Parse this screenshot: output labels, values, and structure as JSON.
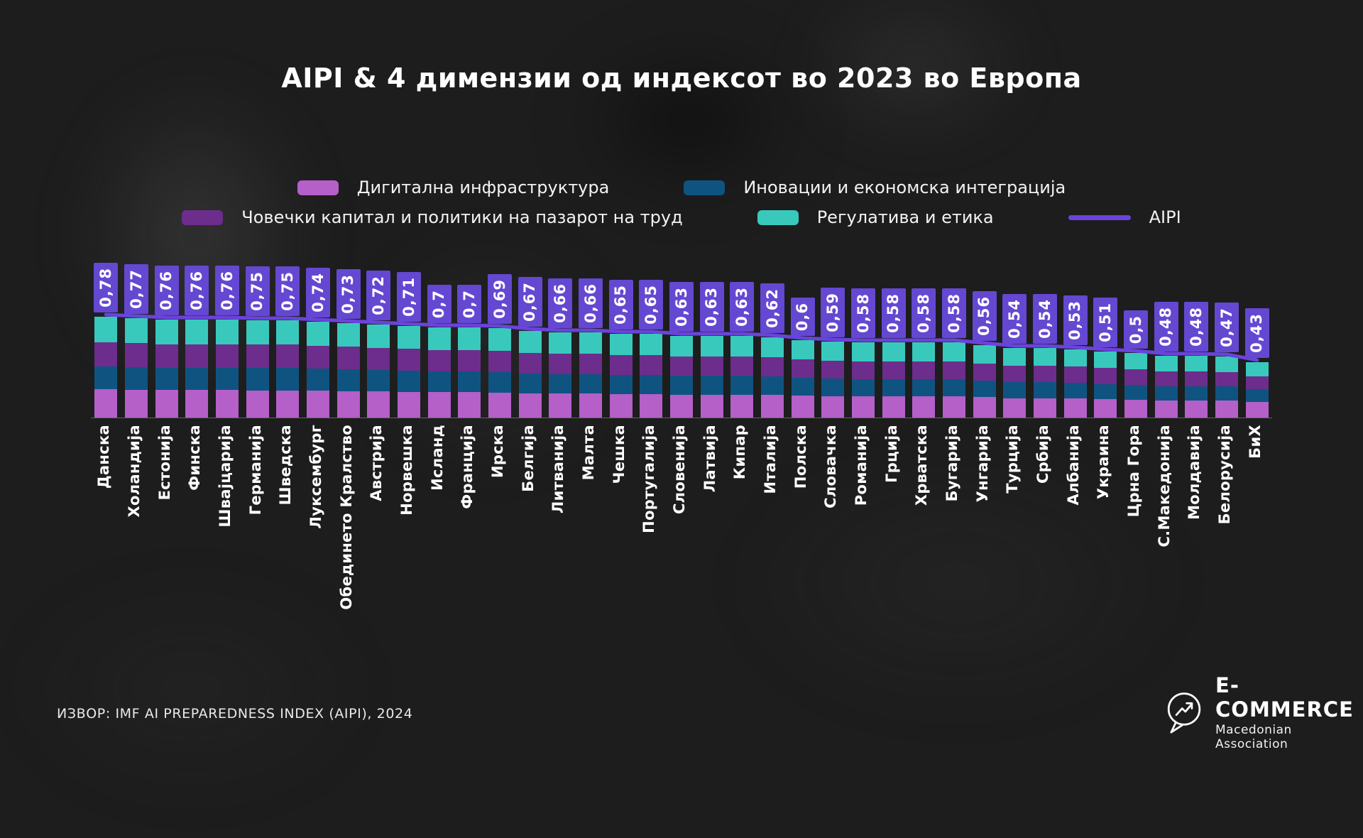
{
  "title": "AIPI & 4 димензии од индексот во 2023 во Европа",
  "legend": {
    "items": [
      {
        "label": "Дигитална инфраструктура",
        "color": "#b55fc9",
        "type": "swatch"
      },
      {
        "label": "Иновации и економска интеграција",
        "color": "#0f5480",
        "type": "swatch"
      },
      {
        "label": "Човечки капитал и политики на пазарот на труд",
        "color": "#6d2d8c",
        "type": "swatch"
      },
      {
        "label": "Регулатива и етика",
        "color": "#38c9bc",
        "type": "swatch"
      },
      {
        "label": "AIPI",
        "color": "#6a43dc",
        "type": "line"
      }
    ]
  },
  "chart_data": {
    "type": "bar",
    "subtype": "stacked-columns-with-line-overlay",
    "title": "AIPI & 4 димензии од индексот во 2023 во Европа",
    "xlabel": "",
    "ylabel": "",
    "ylim": [
      0,
      0.8
    ],
    "grid": false,
    "legend_position": "top",
    "categories": [
      "Данска",
      "Холандија",
      "Естонија",
      "Финска",
      "Швајцарија",
      "Германија",
      "Шведска",
      "Луксембург",
      "Обединето Кралство",
      "Австрија",
      "Норвешка",
      "Исланд",
      "Франција",
      "Ирска",
      "Белгија",
      "Литванија",
      "Малта",
      "Чешка",
      "Португалија",
      "Словенија",
      "Латвија",
      "Кипар",
      "Италија",
      "Полска",
      "Словачка",
      "Романија",
      "Грција",
      "Хрватска",
      "Бугарија",
      "Унгарија",
      "Турција",
      "Србија",
      "Албанија",
      "Украина",
      "Црна Гора",
      "С.Македонија",
      "Молдавија",
      "Белорусија",
      "БиХ"
    ],
    "aipi": {
      "name": "AIPI",
      "values": [
        0.78,
        0.77,
        0.76,
        0.76,
        0.76,
        0.75,
        0.75,
        0.74,
        0.73,
        0.72,
        0.71,
        0.7,
        0.7,
        0.69,
        0.67,
        0.66,
        0.66,
        0.65,
        0.65,
        0.63,
        0.63,
        0.63,
        0.62,
        0.6,
        0.59,
        0.58,
        0.58,
        0.58,
        0.58,
        0.56,
        0.54,
        0.54,
        0.53,
        0.51,
        0.5,
        0.48,
        0.48,
        0.47,
        0.43
      ]
    },
    "value_labels": [
      "0,78",
      "0,77",
      "0,76",
      "0,76",
      "0,76",
      "0,75",
      "0,75",
      "0,74",
      "0,73",
      "0,72",
      "0,71",
      "0,7",
      "0,7",
      "0,69",
      "0,67",
      "0,66",
      "0,66",
      "0,65",
      "0,65",
      "0,63",
      "0,63",
      "0,63",
      "0,62",
      "0,6",
      "0,59",
      "0,58",
      "0,58",
      "0,58",
      "0,58",
      "0,56",
      "0,54",
      "0,54",
      "0,53",
      "0,51",
      "0,5",
      "0,48",
      "0,48",
      "0,47",
      "0,43"
    ],
    "segments_bottom_to_top": [
      {
        "name": "Дигитална инфраструктура",
        "color": "#b55fc9",
        "visual_fraction_of_total": 0.28
      },
      {
        "name": "Иновации и економска интеграција",
        "color": "#0f5480",
        "visual_fraction_of_total": 0.23
      },
      {
        "name": "Човечки капитал и политики на пазарот на труд",
        "color": "#6d2d8c",
        "visual_fraction_of_total": 0.24
      },
      {
        "name": "Регулатива и етика",
        "color": "#38c9bc",
        "visual_fraction_of_total": 0.25
      }
    ],
    "line_color": "#6a43dc",
    "value_label_box_color": "#6448d1"
  },
  "footer": {
    "source": "ИЗВОР: IMF AI PREPAREDNESS INDEX (AIPI), 2024"
  },
  "logo": {
    "name": "E-COMMERCE",
    "subtitle": "Macedonian Association",
    "icon": "trend-arrow-speech-bubble-icon"
  },
  "colors": {
    "background": "#1d1d1e",
    "text": "#ffffff",
    "axis_line": "rgba(255,255,255,0.30)"
  }
}
